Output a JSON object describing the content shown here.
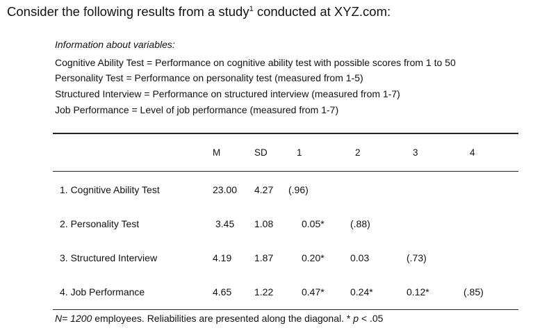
{
  "heading": {
    "before": "Consider the following results from a study",
    "sup": "1",
    "after": " conducted at XYZ.com:"
  },
  "info": {
    "title": "Information about variables:",
    "definitions": [
      "Cognitive Ability Test = Performance on cognitive ability test with possible scores from 1 to 50",
      "Personality Test = Performance on personality test (measured from 1-5)",
      "Structured Interview = Performance on structured interview (measured from 1-7)",
      "Job Performance = Level of job performance (measured from 1-7)"
    ]
  },
  "table": {
    "headers": [
      "M",
      "SD",
      "1",
      "2",
      "3",
      "4"
    ],
    "rows": [
      {
        "label": "1. Cognitive Ability Test",
        "m": "23.00",
        "sd": "4.27",
        "c1": "(.96)",
        "c2": "",
        "c3": "",
        "c4": ""
      },
      {
        "label": "2. Personality Test",
        "m": "3.45",
        "sd": "1.08",
        "c1": "0.05*",
        "c2": "(.88)",
        "c3": "",
        "c4": ""
      },
      {
        "label": "3. Structured Interview",
        "m": "4.19",
        "sd": "1.87",
        "c1": "0.20*",
        "c2": "0.03",
        "c3": "(.73)",
        "c4": ""
      },
      {
        "label": "4. Job Performance",
        "m": "4.65",
        "sd": "1.22",
        "c1": "0.47*",
        "c2": "0.24*",
        "c3": "0.12*",
        "c4": "(.85)"
      }
    ]
  },
  "note": {
    "n_label": "N= 1200",
    "text": " employees. Reliabilities are presented along the diagonal. * ",
    "p_label": "p",
    "p_value": " < .05"
  }
}
